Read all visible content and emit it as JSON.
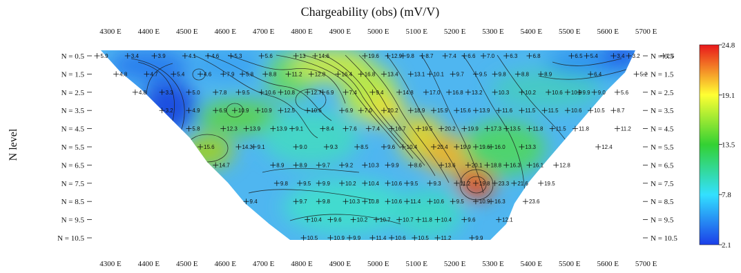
{
  "chart_data": {
    "type": "heatmap",
    "title": "Chargeability (obs) (mV/V)",
    "ylabel": "N level",
    "xlabel": "",
    "x_ticks": [
      "4300 E",
      "4400 E",
      "4500 E",
      "4600 E",
      "4700 E",
      "4800 E",
      "4900 E",
      "5000 E",
      "5100 E",
      "5200 E",
      "5300 E",
      "5400 E",
      "5500 E",
      "5600 E",
      "5700 E"
    ],
    "x_tick_values": [
      4300,
      4400,
      4500,
      4600,
      4700,
      4800,
      4900,
      5000,
      5100,
      5200,
      5300,
      5400,
      5500,
      5600,
      5700
    ],
    "y_ticks": [
      "N = 0.5",
      "N = 1.5",
      "N = 2.5",
      "N = 3.5",
      "N = 4.5",
      "N = 5.5",
      "N = 6.5",
      "N = 7.5",
      "N = 8.5",
      "N = 9.5",
      "N = 10.5"
    ],
    "y_tick_values": [
      0.5,
      1.5,
      2.5,
      3.5,
      4.5,
      5.5,
      6.5,
      7.5,
      8.5,
      9.5,
      10.5
    ],
    "colorbar": {
      "ticks": [
        "24.8",
        "19.1",
        "13.5",
        "7.8",
        "2.1"
      ],
      "tick_values": [
        24.8,
        19.1,
        13.5,
        7.8,
        2.1
      ],
      "colors": [
        "#e8171b",
        "#ffff33",
        "#33d133",
        "#33e0ff",
        "#1b3ee8"
      ]
    },
    "points": [
      {
        "x": 4290,
        "n": 0.5,
        "v": "5.9"
      },
      {
        "x": 4370,
        "n": 0.5,
        "v": "3.4"
      },
      {
        "x": 4440,
        "n": 0.5,
        "v": "3.9"
      },
      {
        "x": 4520,
        "n": 0.5,
        "v": "4.1"
      },
      {
        "x": 4580,
        "n": 0.5,
        "v": "4.6"
      },
      {
        "x": 4640,
        "n": 0.5,
        "v": "5.3"
      },
      {
        "x": 4720,
        "n": 0.5,
        "v": "5.6"
      },
      {
        "x": 4810,
        "n": 0.5,
        "v": "13"
      },
      {
        "x": 4860,
        "n": 0.5,
        "v": "14.6"
      },
      {
        "x": 4990,
        "n": 0.5,
        "v": "19.6"
      },
      {
        "x": 5050,
        "n": 0.5,
        "v": "12.9"
      },
      {
        "x": 5090,
        "n": 0.5,
        "v": "9.8"
      },
      {
        "x": 5140,
        "n": 0.5,
        "v": "8.7"
      },
      {
        "x": 5200,
        "n": 0.5,
        "v": "7.4"
      },
      {
        "x": 5250,
        "n": 0.5,
        "v": "6.6"
      },
      {
        "x": 5300,
        "n": 0.5,
        "v": "7.0"
      },
      {
        "x": 5360,
        "n": 0.5,
        "v": "6.3"
      },
      {
        "x": 5420,
        "n": 0.5,
        "v": "6.8"
      },
      {
        "x": 5530,
        "n": 0.5,
        "v": "6.5"
      },
      {
        "x": 5570,
        "n": 0.5,
        "v": "5.4"
      },
      {
        "x": 5640,
        "n": 0.5,
        "v": "3.4"
      },
      {
        "x": 5680,
        "n": 0.5,
        "v": "3.2"
      },
      {
        "x": 5770,
        "n": 0.5,
        "v": "2.5"
      },
      {
        "x": 4340,
        "n": 1.5,
        "v": "4.8"
      },
      {
        "x": 4420,
        "n": 1.5,
        "v": "4.7"
      },
      {
        "x": 4490,
        "n": 1.5,
        "v": "5.4"
      },
      {
        "x": 4560,
        "n": 1.5,
        "v": "4.6"
      },
      {
        "x": 4620,
        "n": 1.5,
        "v": "7.9"
      },
      {
        "x": 4670,
        "n": 1.5,
        "v": "5.8"
      },
      {
        "x": 4730,
        "n": 1.5,
        "v": "8.8"
      },
      {
        "x": 4790,
        "n": 1.5,
        "v": "11.2"
      },
      {
        "x": 4850,
        "n": 1.5,
        "v": "12.8"
      },
      {
        "x": 4920,
        "n": 1.5,
        "v": "16.4"
      },
      {
        "x": 4980,
        "n": 1.5,
        "v": "16.8"
      },
      {
        "x": 5040,
        "n": 1.5,
        "v": "13.4"
      },
      {
        "x": 5110,
        "n": 1.5,
        "v": "13.1"
      },
      {
        "x": 5160,
        "n": 1.5,
        "v": "10.1"
      },
      {
        "x": 5220,
        "n": 1.5,
        "v": "9.7"
      },
      {
        "x": 5280,
        "n": 1.5,
        "v": "9.5"
      },
      {
        "x": 5330,
        "n": 1.5,
        "v": "9.8"
      },
      {
        "x": 5390,
        "n": 1.5,
        "v": "8.8"
      },
      {
        "x": 5450,
        "n": 1.5,
        "v": "8.9"
      },
      {
        "x": 5580,
        "n": 1.5,
        "v": "6.4"
      },
      {
        "x": 5700,
        "n": 1.5,
        "v": "5.2"
      },
      {
        "x": 4390,
        "n": 2.5,
        "v": "4.8"
      },
      {
        "x": 4460,
        "n": 2.5,
        "v": "3.3"
      },
      {
        "x": 4530,
        "n": 2.5,
        "v": "5.0"
      },
      {
        "x": 4600,
        "n": 2.5,
        "v": "7.8"
      },
      {
        "x": 4660,
        "n": 2.5,
        "v": "9.5"
      },
      {
        "x": 4720,
        "n": 2.5,
        "v": "10.6"
      },
      {
        "x": 4770,
        "n": 2.5,
        "v": "10.8"
      },
      {
        "x": 4840,
        "n": 2.5,
        "v": "12.7"
      },
      {
        "x": 4880,
        "n": 2.5,
        "v": "6.9"
      },
      {
        "x": 4940,
        "n": 2.5,
        "v": "7.4"
      },
      {
        "x": 5010,
        "n": 2.5,
        "v": "9.4"
      },
      {
        "x": 5080,
        "n": 2.5,
        "v": "14.8"
      },
      {
        "x": 5150,
        "n": 2.5,
        "v": "17.0"
      },
      {
        "x": 5210,
        "n": 2.5,
        "v": "16.8"
      },
      {
        "x": 5260,
        "n": 2.5,
        "v": "13.2"
      },
      {
        "x": 5330,
        "n": 2.5,
        "v": "10.3"
      },
      {
        "x": 5400,
        "n": 2.5,
        "v": "10.2"
      },
      {
        "x": 5470,
        "n": 2.5,
        "v": "10.6"
      },
      {
        "x": 5520,
        "n": 2.5,
        "v": "10.9"
      },
      {
        "x": 5550,
        "n": 2.5,
        "v": "9.9"
      },
      {
        "x": 5590,
        "n": 2.5,
        "v": "9.0"
      },
      {
        "x": 5650,
        "n": 2.5,
        "v": "5.6"
      },
      {
        "x": 4460,
        "n": 3.5,
        "v": "3.2"
      },
      {
        "x": 4530,
        "n": 3.5,
        "v": "4.9"
      },
      {
        "x": 4600,
        "n": 3.5,
        "v": "6.9"
      },
      {
        "x": 4650,
        "n": 3.5,
        "v": "10.9"
      },
      {
        "x": 4710,
        "n": 3.5,
        "v": "10.9"
      },
      {
        "x": 4770,
        "n": 3.5,
        "v": "12.5"
      },
      {
        "x": 4840,
        "n": 3.5,
        "v": "10.6"
      },
      {
        "x": 4930,
        "n": 3.5,
        "v": "6.9"
      },
      {
        "x": 4980,
        "n": 3.5,
        "v": "7.0"
      },
      {
        "x": 5040,
        "n": 3.5,
        "v": "20.2"
      },
      {
        "x": 5110,
        "n": 3.5,
        "v": "18.9"
      },
      {
        "x": 5170,
        "n": 3.5,
        "v": "15.9"
      },
      {
        "x": 5230,
        "n": 3.5,
        "v": "15.6"
      },
      {
        "x": 5280,
        "n": 3.5,
        "v": "13.9"
      },
      {
        "x": 5340,
        "n": 3.5,
        "v": "11.6"
      },
      {
        "x": 5400,
        "n": 3.5,
        "v": "11.5"
      },
      {
        "x": 5460,
        "n": 3.5,
        "v": "11.5"
      },
      {
        "x": 5520,
        "n": 3.5,
        "v": "10.6"
      },
      {
        "x": 5580,
        "n": 3.5,
        "v": "10.5"
      },
      {
        "x": 5640,
        "n": 3.5,
        "v": "8.7"
      },
      {
        "x": 4530,
        "n": 4.5,
        "v": "5.8"
      },
      {
        "x": 4620,
        "n": 4.5,
        "v": "12.3"
      },
      {
        "x": 4680,
        "n": 4.5,
        "v": "13.9"
      },
      {
        "x": 4750,
        "n": 4.5,
        "v": "13.9"
      },
      {
        "x": 4800,
        "n": 4.5,
        "v": "9.1"
      },
      {
        "x": 4880,
        "n": 4.5,
        "v": "8.4"
      },
      {
        "x": 4940,
        "n": 4.5,
        "v": "7.6"
      },
      {
        "x": 5000,
        "n": 4.5,
        "v": "7.4"
      },
      {
        "x": 5060,
        "n": 4.5,
        "v": "16.7"
      },
      {
        "x": 5130,
        "n": 4.5,
        "v": "19.5"
      },
      {
        "x": 5190,
        "n": 4.5,
        "v": "20.2"
      },
      {
        "x": 5250,
        "n": 4.5,
        "v": "19.9"
      },
      {
        "x": 5310,
        "n": 4.5,
        "v": "17.3"
      },
      {
        "x": 5360,
        "n": 4.5,
        "v": "13.5"
      },
      {
        "x": 5420,
        "n": 4.5,
        "v": "11.8"
      },
      {
        "x": 5480,
        "n": 4.5,
        "v": "11.5"
      },
      {
        "x": 5540,
        "n": 4.5,
        "v": "11.8"
      },
      {
        "x": 5650,
        "n": 4.5,
        "v": "11.2"
      },
      {
        "x": 4560,
        "n": 5.5,
        "v": "15.6"
      },
      {
        "x": 4660,
        "n": 5.5,
        "v": "14.3"
      },
      {
        "x": 4700,
        "n": 5.5,
        "v": "9.1"
      },
      {
        "x": 4810,
        "n": 5.5,
        "v": "9.0"
      },
      {
        "x": 4890,
        "n": 5.5,
        "v": "9.3"
      },
      {
        "x": 4970,
        "n": 5.5,
        "v": "8.5"
      },
      {
        "x": 5040,
        "n": 5.5,
        "v": "9.6"
      },
      {
        "x": 5090,
        "n": 5.5,
        "v": "10.4"
      },
      {
        "x": 5170,
        "n": 5.5,
        "v": "20.4"
      },
      {
        "x": 5230,
        "n": 5.5,
        "v": "19.9"
      },
      {
        "x": 5280,
        "n": 5.5,
        "v": "19.6"
      },
      {
        "x": 5320,
        "n": 5.5,
        "v": "16.0"
      },
      {
        "x": 5400,
        "n": 5.5,
        "v": "13.3"
      },
      {
        "x": 5600,
        "n": 5.5,
        "v": "12.4"
      },
      {
        "x": 4600,
        "n": 6.5,
        "v": "14.7"
      },
      {
        "x": 4750,
        "n": 6.5,
        "v": "8.9"
      },
      {
        "x": 4810,
        "n": 6.5,
        "v": "8.9"
      },
      {
        "x": 4870,
        "n": 6.5,
        "v": "9.7"
      },
      {
        "x": 4930,
        "n": 6.5,
        "v": "9.2"
      },
      {
        "x": 4990,
        "n": 6.5,
        "v": "10.3"
      },
      {
        "x": 5050,
        "n": 6.5,
        "v": "9.9"
      },
      {
        "x": 5110,
        "n": 6.5,
        "v": "8.6"
      },
      {
        "x": 5190,
        "n": 6.5,
        "v": "13.6"
      },
      {
        "x": 5260,
        "n": 6.5,
        "v": "20.1"
      },
      {
        "x": 5310,
        "n": 6.5,
        "v": "18.8"
      },
      {
        "x": 5360,
        "n": 6.5,
        "v": "16.3"
      },
      {
        "x": 5420,
        "n": 6.5,
        "v": "16.1"
      },
      {
        "x": 5490,
        "n": 6.5,
        "v": "12.8"
      },
      {
        "x": 4760,
        "n": 7.5,
        "v": "9.8"
      },
      {
        "x": 4820,
        "n": 7.5,
        "v": "9.5"
      },
      {
        "x": 4870,
        "n": 7.5,
        "v": "9.9"
      },
      {
        "x": 4930,
        "n": 7.5,
        "v": "10.2"
      },
      {
        "x": 4990,
        "n": 7.5,
        "v": "10.4"
      },
      {
        "x": 5050,
        "n": 7.5,
        "v": "10.6"
      },
      {
        "x": 5100,
        "n": 7.5,
        "v": "9.5"
      },
      {
        "x": 5160,
        "n": 7.5,
        "v": "9.3"
      },
      {
        "x": 5230,
        "n": 7.5,
        "v": "11.2"
      },
      {
        "x": 5280,
        "n": 7.5,
        "v": "19.8"
      },
      {
        "x": 5330,
        "n": 7.5,
        "v": "23.3"
      },
      {
        "x": 5380,
        "n": 7.5,
        "v": "21.6"
      },
      {
        "x": 5450,
        "n": 7.5,
        "v": "19.5"
      },
      {
        "x": 4680,
        "n": 8.5,
        "v": "9.4"
      },
      {
        "x": 4810,
        "n": 8.5,
        "v": "9.7"
      },
      {
        "x": 4870,
        "n": 8.5,
        "v": "9.8"
      },
      {
        "x": 4940,
        "n": 8.5,
        "v": "10.3"
      },
      {
        "x": 4990,
        "n": 8.5,
        "v": "10.8"
      },
      {
        "x": 5050,
        "n": 8.5,
        "v": "10.6"
      },
      {
        "x": 5100,
        "n": 8.5,
        "v": "11.4"
      },
      {
        "x": 5160,
        "n": 8.5,
        "v": "10.6"
      },
      {
        "x": 5220,
        "n": 8.5,
        "v": "9.5"
      },
      {
        "x": 5280,
        "n": 8.5,
        "v": "10.9"
      },
      {
        "x": 5320,
        "n": 8.5,
        "v": "16.3"
      },
      {
        "x": 5410,
        "n": 8.5,
        "v": "23.6"
      },
      {
        "x": 4840,
        "n": 9.5,
        "v": "10.4"
      },
      {
        "x": 4900,
        "n": 9.5,
        "v": "9.6"
      },
      {
        "x": 4960,
        "n": 9.5,
        "v": "10.2"
      },
      {
        "x": 5020,
        "n": 9.5,
        "v": "10.7"
      },
      {
        "x": 5080,
        "n": 9.5,
        "v": "10.7"
      },
      {
        "x": 5130,
        "n": 9.5,
        "v": "11.8"
      },
      {
        "x": 5180,
        "n": 9.5,
        "v": "10.4"
      },
      {
        "x": 5250,
        "n": 9.5,
        "v": "9.6"
      },
      {
        "x": 5340,
        "n": 9.5,
        "v": "12.1"
      },
      {
        "x": 4830,
        "n": 10.5,
        "v": "10.5"
      },
      {
        "x": 4900,
        "n": 10.5,
        "v": "10.9"
      },
      {
        "x": 4950,
        "n": 10.5,
        "v": "9.9"
      },
      {
        "x": 5010,
        "n": 10.5,
        "v": "11.4"
      },
      {
        "x": 5060,
        "n": 10.5,
        "v": "10.6"
      },
      {
        "x": 5120,
        "n": 10.5,
        "v": "10.5"
      },
      {
        "x": 5180,
        "n": 10.5,
        "v": "11.2"
      },
      {
        "x": 5270,
        "n": 10.5,
        "v": "9.9"
      }
    ]
  }
}
